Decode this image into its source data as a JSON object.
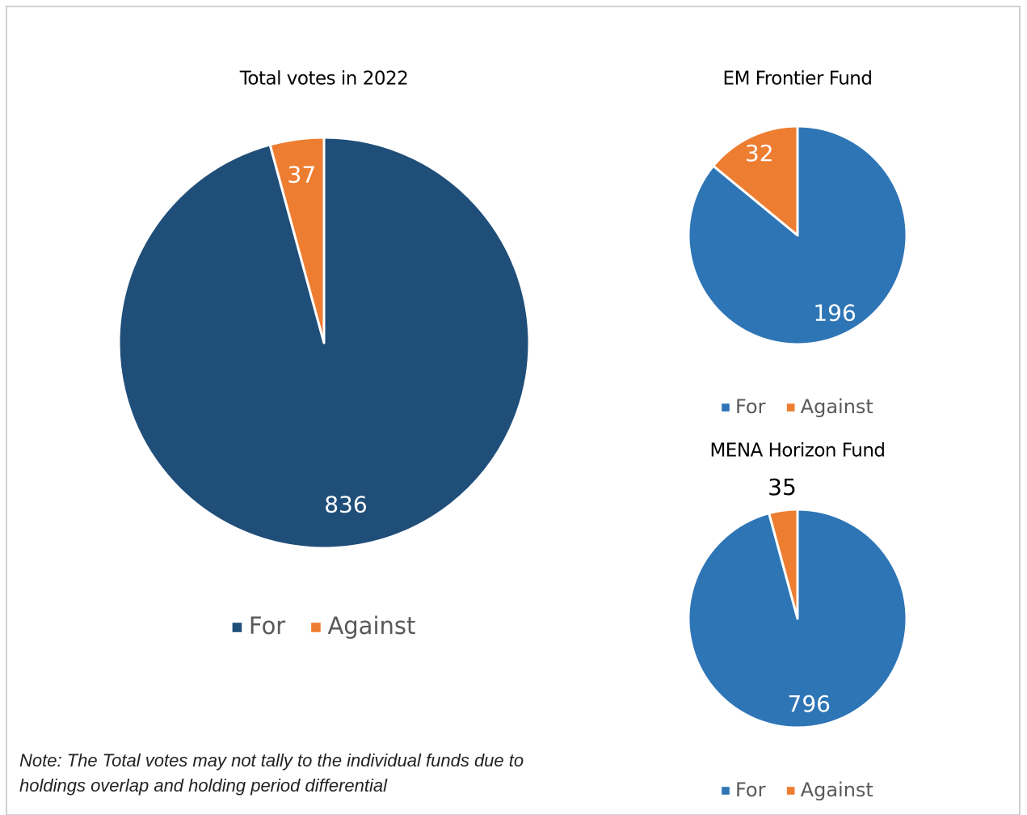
{
  "chart_data": [
    {
      "type": "pie",
      "title": "Total votes in 2022",
      "categories": [
        "For",
        "Against"
      ],
      "values": [
        836,
        37
      ],
      "colors": [
        "#1f4e79",
        "#ed7d31"
      ]
    },
    {
      "type": "pie",
      "title": "EM Frontier Fund",
      "categories": [
        "For",
        "Against"
      ],
      "values": [
        196,
        32
      ],
      "colors": [
        "#2e75b6",
        "#ed7d31"
      ]
    },
    {
      "type": "pie",
      "title": "MENA Horizon Fund",
      "categories": [
        "For",
        "Against"
      ],
      "values": [
        796,
        35
      ],
      "colors": [
        "#2e75b6",
        "#ed7d31"
      ]
    }
  ],
  "note": [
    "Note: The Total votes may not tally to the individual funds due to",
    "holdings overlap and holding period differential"
  ]
}
